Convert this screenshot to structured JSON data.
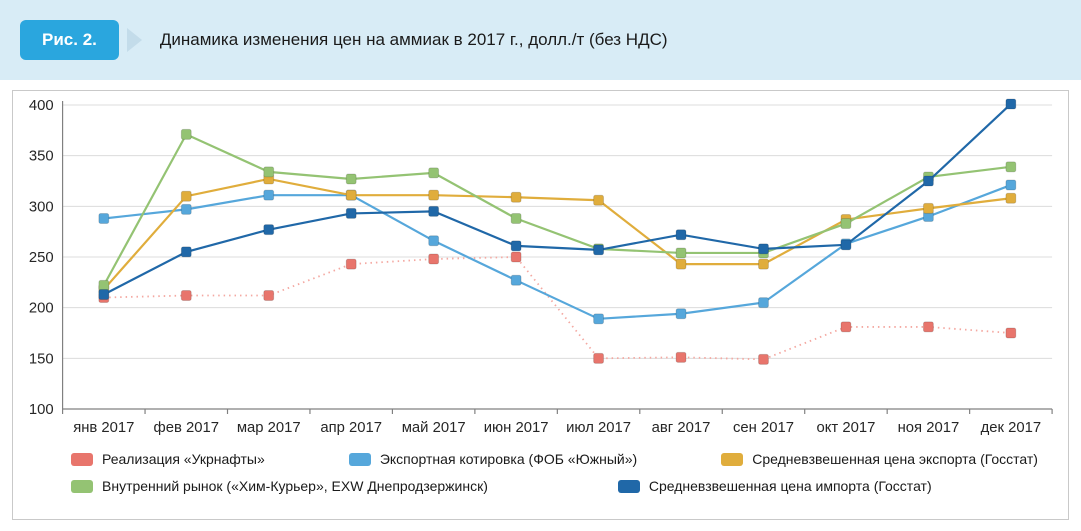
{
  "figure": {
    "badge": "Рис. 2.",
    "title": "Динамика изменения цен на аммиак в 2017 г., долл./т (без НДС)"
  },
  "colors": {
    "header_bg": "#d8ecf6",
    "badge_bg": "#2aa6de",
    "chart_border": "#c9c9c9",
    "gridline": "#dcdcdc",
    "axis": "#808080",
    "tick_text": "#262626"
  },
  "chart_data": {
    "type": "line",
    "title": "Динамика изменения цен на аммиак в 2017 г., долл./т (без НДС)",
    "xlabel": "",
    "ylabel": "долл./т",
    "ylim": [
      100,
      400
    ],
    "yticks": [
      100,
      150,
      200,
      250,
      300,
      350,
      400
    ],
    "grid": true,
    "legend_position": "bottom",
    "categories": [
      "янв 2017",
      "фев 2017",
      "мар 2017",
      "апр 2017",
      "май 2017",
      "июн 2017",
      "июл 2017",
      "авг 2017",
      "сен 2017",
      "окт 2017",
      "ноя 2017",
      "дек 2017"
    ],
    "series": [
      {
        "name": "Реализация «Укрнафты»",
        "color": "#e8756c",
        "line_color": "#f4a8a1",
        "dotted": true,
        "values": [
          210,
          212,
          212,
          243,
          248,
          250,
          150,
          151,
          149,
          181,
          181,
          175
        ]
      },
      {
        "name": "Экспортная котировка (ФОБ «Южный»)",
        "color": "#56a7db",
        "dotted": false,
        "values": [
          288,
          297,
          311,
          311,
          266,
          227,
          189,
          194,
          205,
          263,
          290,
          321
        ]
      },
      {
        "name": "Средневзвешенная цена экспорта (Госстат)",
        "color": "#e0ad3c",
        "dotted": false,
        "values": [
          218,
          310,
          327,
          311,
          311,
          309,
          306,
          243,
          243,
          287,
          298,
          308
        ]
      },
      {
        "name": "Внутренний рынок («Хим-Курьер», EXW Днепродзержинск)",
        "color": "#94c373",
        "dotted": false,
        "values": [
          222,
          371,
          334,
          327,
          333,
          288,
          258,
          254,
          254,
          283,
          329,
          339
        ]
      },
      {
        "name": "Средневзвешенная цена импорта (Госстат)",
        "color": "#2068a8",
        "dotted": false,
        "values": [
          213,
          255,
          277,
          293,
          295,
          261,
          257,
          272,
          258,
          262,
          325,
          401
        ]
      }
    ]
  }
}
